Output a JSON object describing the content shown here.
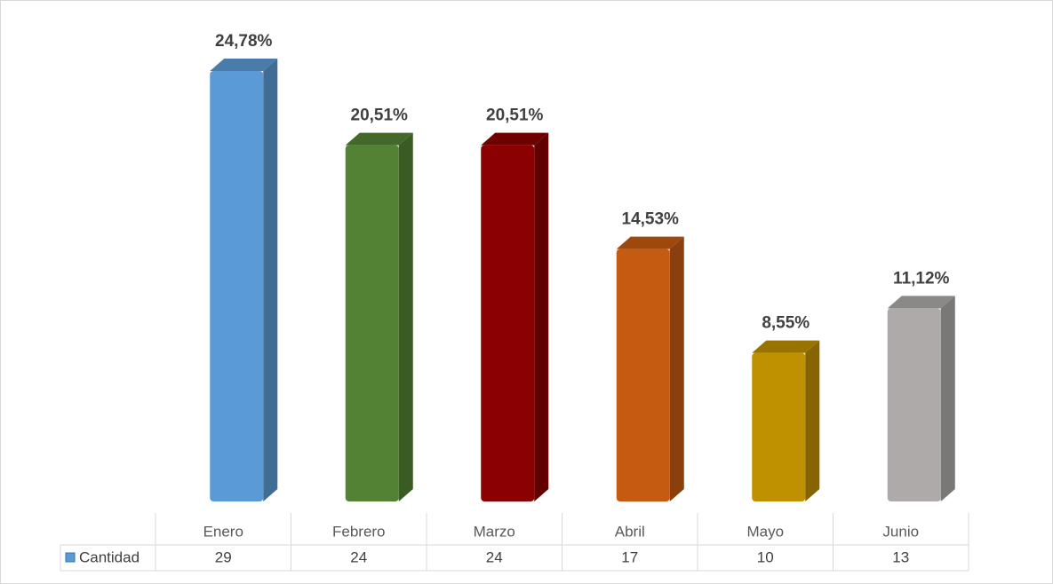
{
  "chart_data": {
    "type": "bar3d",
    "categories": [
      "Enero",
      "Febrero",
      "Marzo",
      "Abril",
      "Mayo",
      "Junio"
    ],
    "values": [
      24.78,
      20.51,
      20.51,
      14.53,
      8.55,
      11.12
    ],
    "value_labels": [
      "24,78%",
      "20,51%",
      "20,51%",
      "14,53%",
      "8,55%",
      "11,12%"
    ],
    "colors": [
      "#5b9bd5",
      "#548235",
      "#8b0000",
      "#c55a11",
      "#bf9000",
      "#aeaaaa"
    ],
    "data_table": {
      "name": "Cantidad",
      "values": [
        29,
        24,
        24,
        17,
        10,
        13
      ]
    }
  }
}
